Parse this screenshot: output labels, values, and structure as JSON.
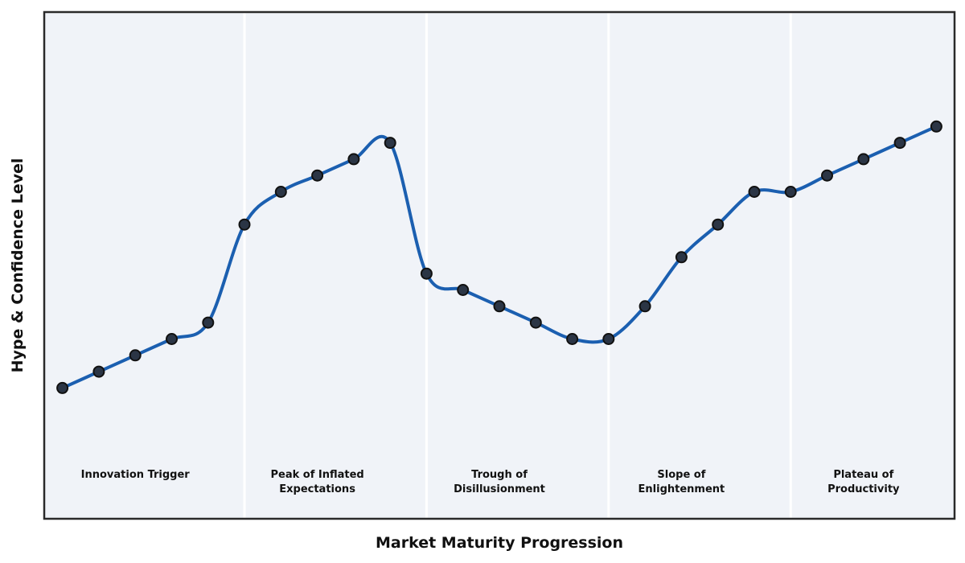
{
  "figure": {
    "background": "#ffffff",
    "plot_background": "#f0f3f8",
    "border_color": "#2a2a2a",
    "text_color": "#111111"
  },
  "chart_data": {
    "type": "line",
    "title": "",
    "xlabel": "Market Maturity Progression",
    "ylabel": "Hype & Confidence Level",
    "x": [
      0,
      1,
      2,
      3,
      4,
      5,
      6,
      7,
      8,
      9,
      10,
      11,
      12,
      13,
      14,
      15,
      16,
      17,
      18,
      19,
      20,
      21,
      22,
      23,
      24
    ],
    "y": [
      5,
      6,
      7,
      8,
      9,
      15,
      17,
      18,
      19,
      20,
      12,
      11,
      10,
      9,
      8,
      8,
      10,
      13,
      15,
      17,
      17,
      18,
      19,
      20,
      21
    ],
    "xlim": [
      -0.5,
      24.5
    ],
    "ylim": [
      -3,
      28
    ],
    "grid": false,
    "legend": "none",
    "smooth": true,
    "line_color": "#1b5fb0",
    "line_width": 4,
    "marker_color": "#2b3545",
    "marker_edge_color": "#111111",
    "marker_radius": 6.5,
    "divider_color": "#ffffff",
    "phase_dividers_x": [
      5,
      10,
      15,
      20
    ],
    "phases": [
      {
        "label": "Innovation Trigger",
        "center_x": 2
      },
      {
        "label": "Peak of Inflated\nExpectations",
        "center_x": 7
      },
      {
        "label": "Trough of\nDisillusionment",
        "center_x": 12
      },
      {
        "label": "Slope of\nEnlightenment",
        "center_x": 17
      },
      {
        "label": "Plateau of\nProductivity",
        "center_x": 22
      }
    ]
  }
}
